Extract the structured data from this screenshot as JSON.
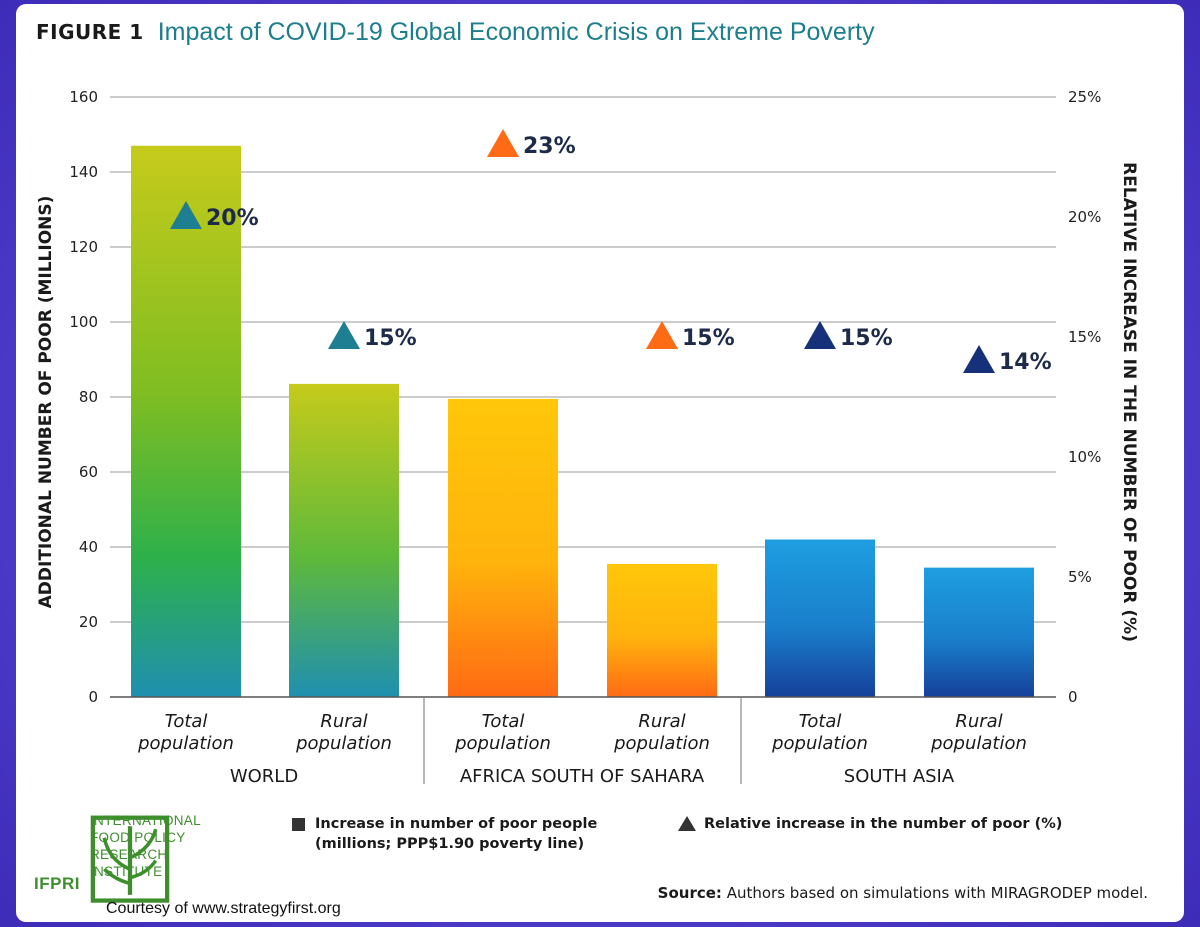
{
  "figure_label": "FIGURE 1",
  "figure_title": "Impact of COVID-19 Global Economic Crisis on Extreme Poverty",
  "colors": {
    "title": "#1d7e8c",
    "world_bar_top": "#c6cb1b",
    "world_bar_mid": "#2db04b",
    "world_bar_bottom": "#1f8fb0",
    "africa_bar_top": "#ffc70a",
    "africa_bar_bottom": "#ff6a14",
    "asia_bar_top": "#1e9ee0",
    "asia_bar_bottom": "#15409a",
    "world_marker": "#1f7f92",
    "africa_marker": "#ff6a14",
    "asia_marker": "#16307a",
    "ifpri_green": "#3f8e2e"
  },
  "chart_data": {
    "type": "bar",
    "title": "Impact of COVID-19 Global Economic Crisis on Extreme Poverty",
    "ylabel": "ADDITIONAL NUMBER OF POOR (MILLIONS)",
    "y2label": "RELATIVE INCREASE IN THE NUMBER OF POOR (%)",
    "ylim": [
      0,
      160
    ],
    "y2lim": [
      0,
      25
    ],
    "yticks": [
      "0",
      "20",
      "40",
      "60",
      "80",
      "100",
      "120",
      "140",
      "160"
    ],
    "y2ticks": [
      "0",
      "5%",
      "10%",
      "15%",
      "20%",
      "25%"
    ],
    "groups": [
      "WORLD",
      "AFRICA SOUTH OF SAHARA",
      "SOUTH ASIA"
    ],
    "categories": [
      {
        "line1": "Total",
        "line2": "population",
        "group": 0
      },
      {
        "line1": "Rural",
        "line2": "population",
        "group": 0
      },
      {
        "line1": "Total",
        "line2": "population",
        "group": 1
      },
      {
        "line1": "Rural",
        "line2": "population",
        "group": 1
      },
      {
        "line1": "Total",
        "line2": "population",
        "group": 2
      },
      {
        "line1": "Rural",
        "line2": "population",
        "group": 2
      }
    ],
    "series": [
      {
        "name": "Increase in number of poor people (millions; PPP$1.90 poverty line)",
        "type": "bar",
        "values": [
          147,
          83.5,
          79.5,
          35.5,
          42,
          34.5
        ]
      },
      {
        "name": "Relative increase in the number of poor (%)",
        "type": "marker",
        "values": [
          20,
          15,
          23,
          15,
          15,
          14
        ],
        "labels": [
          "20%",
          "15%",
          "23%",
          "15%",
          "15%",
          "14%"
        ]
      }
    ]
  },
  "legend": {
    "bar_label_line1": "Increase in number of poor people",
    "bar_label_line2": "(millions; PPP$1.90 poverty line)",
    "marker_label": "Relative increase in the number of poor (%)"
  },
  "org": {
    "name_lines": [
      "INTERNATIONAL",
      "FOOD POLICY",
      "RESEARCH",
      "INSTITUTE"
    ],
    "acronym": "IFPRI"
  },
  "source_label": "Source:",
  "source_text": " Authors based on simulations with MIRAGRODEP model.",
  "courtesy": "Courtesy of www.strategyfirst.org"
}
